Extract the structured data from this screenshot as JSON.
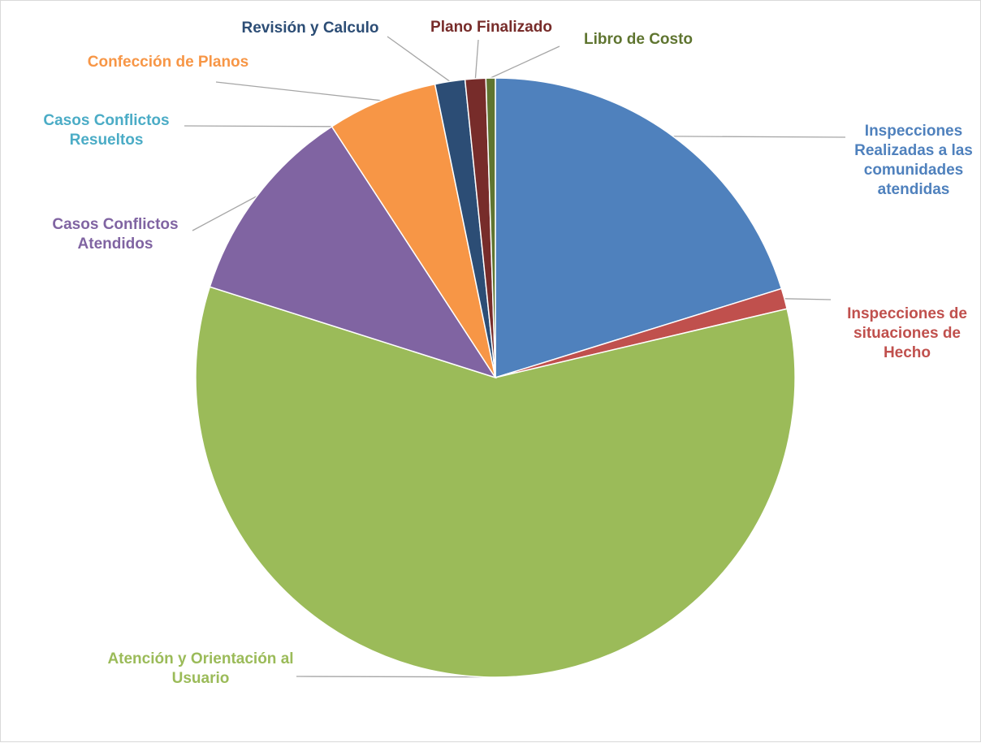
{
  "chart_data": {
    "type": "pie",
    "title": "",
    "legend": "none",
    "slices": [
      {
        "label": "Inspecciones Realizadas a las comunidades atendidas",
        "label_lines": [
          "Inspecciones",
          "Realizadas a las",
          "comunidades",
          "atendidas"
        ],
        "value": 20.0,
        "color": "#4f81bd"
      },
      {
        "label": "Inspecciones de situaciones de Hecho",
        "label_lines": [
          "Inspecciones de",
          "situaciones de",
          "Hecho"
        ],
        "value": 1.1,
        "color": "#c0504d"
      },
      {
        "label": "Atención y Orientación al Usuario",
        "label_lines": [
          "Atención y Orientación al",
          "Usuario"
        ],
        "value": 58.0,
        "color": "#9bbb59"
      },
      {
        "label": "Casos Conflictos Atendidos",
        "label_lines": [
          "Casos Conflictos",
          "Atendidos"
        ],
        "value": 10.8,
        "color": "#8064a2"
      },
      {
        "label": "Casos Conflictos Resueltos",
        "label_lines": [
          "Casos Conflictos",
          "Resueltos"
        ],
        "value": 0.0,
        "color": "#4bacc6"
      },
      {
        "label": "Confección de Planos",
        "label_lines": [
          "Confección de Planos"
        ],
        "value": 5.9,
        "color": "#f79646"
      },
      {
        "label": "Revisión y Calculo",
        "label_lines": [
          "Revisión y Calculo"
        ],
        "value": 1.6,
        "color": "#2c4d75"
      },
      {
        "label": "Plano Finalizado",
        "label_lines": [
          "Plano Finalizado"
        ],
        "value": 1.1,
        "color": "#772c2a"
      },
      {
        "label": "Libro de Costo",
        "label_lines": [
          "Libro de Costo"
        ],
        "value": 0.5,
        "color": "#5f7530"
      }
    ]
  }
}
